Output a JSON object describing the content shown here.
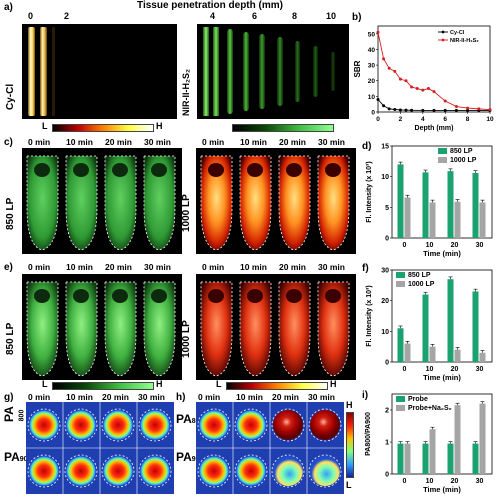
{
  "panel_a": {
    "letter": "a)",
    "title": "Tissue penetration depth (mm)",
    "ticks": [
      "0",
      "2",
      "4",
      "6",
      "8",
      "10"
    ],
    "left_label": "Cy-Cl",
    "right_label": "NIR-II-H₂S₂",
    "scale_low": "L",
    "scale_high": "H"
  },
  "panel_b": {
    "letter": "b)",
    "chart_data": {
      "type": "line",
      "xlabel": "Depth (mm)",
      "ylabel": "SBR",
      "xlim": [
        0,
        10
      ],
      "ylim": [
        0,
        55
      ],
      "xticks": [
        "0",
        "2",
        "4",
        "6",
        "8",
        "10"
      ],
      "yticks": [
        "0",
        "10",
        "20",
        "30",
        "40",
        "50"
      ],
      "legend_position": "top-right",
      "series": [
        {
          "name": "Cy-Cl",
          "color": "#000000",
          "x": [
            0,
            0.5,
            1,
            1.5,
            2,
            2.5,
            3,
            4,
            5,
            6,
            7,
            8,
            9,
            10
          ],
          "values": [
            8,
            4,
            2,
            1.6,
            1.3,
            1.2,
            1.1,
            1,
            1,
            1,
            1,
            1,
            1,
            1
          ]
        },
        {
          "name": "NIR-II-H₂S₂",
          "color": "#d62020",
          "x": [
            0,
            0.5,
            1,
            1.5,
            2,
            2.5,
            3,
            3.5,
            4,
            4.5,
            5,
            6,
            7,
            8,
            9,
            10
          ],
          "values": [
            51,
            34,
            28,
            26,
            21,
            20,
            16,
            15,
            14,
            15,
            13,
            7,
            3.5,
            2.5,
            2,
            1.5
          ]
        }
      ]
    }
  },
  "panel_c": {
    "letter": "c)",
    "times": [
      "0 min",
      "10 min",
      "20 min",
      "30 min"
    ],
    "left_label": "850 LP",
    "right_label": "1000 LP"
  },
  "panel_d": {
    "letter": "d)",
    "chart_data": {
      "type": "bar",
      "categories": [
        "0",
        "10",
        "20",
        "30"
      ],
      "xlabel": "Time (min)",
      "ylabel": "Fl. Intensity (x 10³)",
      "ylim": [
        0,
        15
      ],
      "yticks": [
        "0",
        "5",
        "10",
        "15"
      ],
      "legend_position": "top-right",
      "series": [
        {
          "name": "850 LP",
          "color": "#1aa36f",
          "values": [
            12,
            10.7,
            10.9,
            10.6
          ]
        },
        {
          "name": "1000 LP",
          "color": "#a5a5a5",
          "values": [
            6.6,
            5.8,
            5.9,
            5.8
          ]
        }
      ]
    }
  },
  "panel_e": {
    "letter": "e)",
    "times": [
      "0 min",
      "10 min",
      "20 min",
      "30 min"
    ],
    "left_label": "850 LP",
    "right_label": "1000 LP",
    "scale_low_1": "L",
    "scale_high_1": "H",
    "scale_low_2": "L",
    "scale_high_2": "H"
  },
  "panel_f": {
    "letter": "f)",
    "chart_data": {
      "type": "bar",
      "categories": [
        "0",
        "10",
        "20",
        "30"
      ],
      "xlabel": "Time (min)",
      "ylabel": "Fl. Intensity (x 10³)",
      "ylim": [
        0,
        30
      ],
      "yticks": [
        "0",
        "10",
        "20",
        "30"
      ],
      "legend_position": "top-left",
      "series": [
        {
          "name": "850 LP",
          "color": "#1aa36f",
          "values": [
            11,
            22,
            27,
            23
          ]
        },
        {
          "name": "1000 LP",
          "color": "#a5a5a5",
          "values": [
            6,
            5,
            4,
            3
          ]
        }
      ]
    }
  },
  "panel_g": {
    "letter": "g)",
    "times": [
      "0 min",
      "10 min",
      "20 min",
      "30 min"
    ],
    "row1_label": "PA",
    "row1_sub": "800",
    "row2_label": "PA",
    "row2_sub": "900"
  },
  "panel_h": {
    "letter": "h)",
    "times": [
      "0 min",
      "10 min",
      "20 min",
      "30 min"
    ],
    "row1_label": "PA",
    "row1_sub": "800",
    "row2_label": "PA",
    "row2_sub": "900",
    "scale_high": "H",
    "scale_low": "L"
  },
  "panel_i": {
    "letter": "i)",
    "chart_data": {
      "type": "bar",
      "categories": [
        "0",
        "10",
        "20",
        "30"
      ],
      "xlabel": "Time (min)",
      "ylabel": "PA800/PA900",
      "ylim": [
        0,
        2.5
      ],
      "yticks": [
        "0",
        "1",
        "2"
      ],
      "legend_position": "top-left",
      "series": [
        {
          "name": "Probe",
          "color": "#1aa36f",
          "values": [
            0.95,
            0.95,
            0.95,
            0.95
          ]
        },
        {
          "name": "Probe+Na₂S₂",
          "color": "#a5a5a5",
          "values": [
            0.95,
            1.4,
            2.15,
            2.2
          ]
        }
      ]
    }
  }
}
